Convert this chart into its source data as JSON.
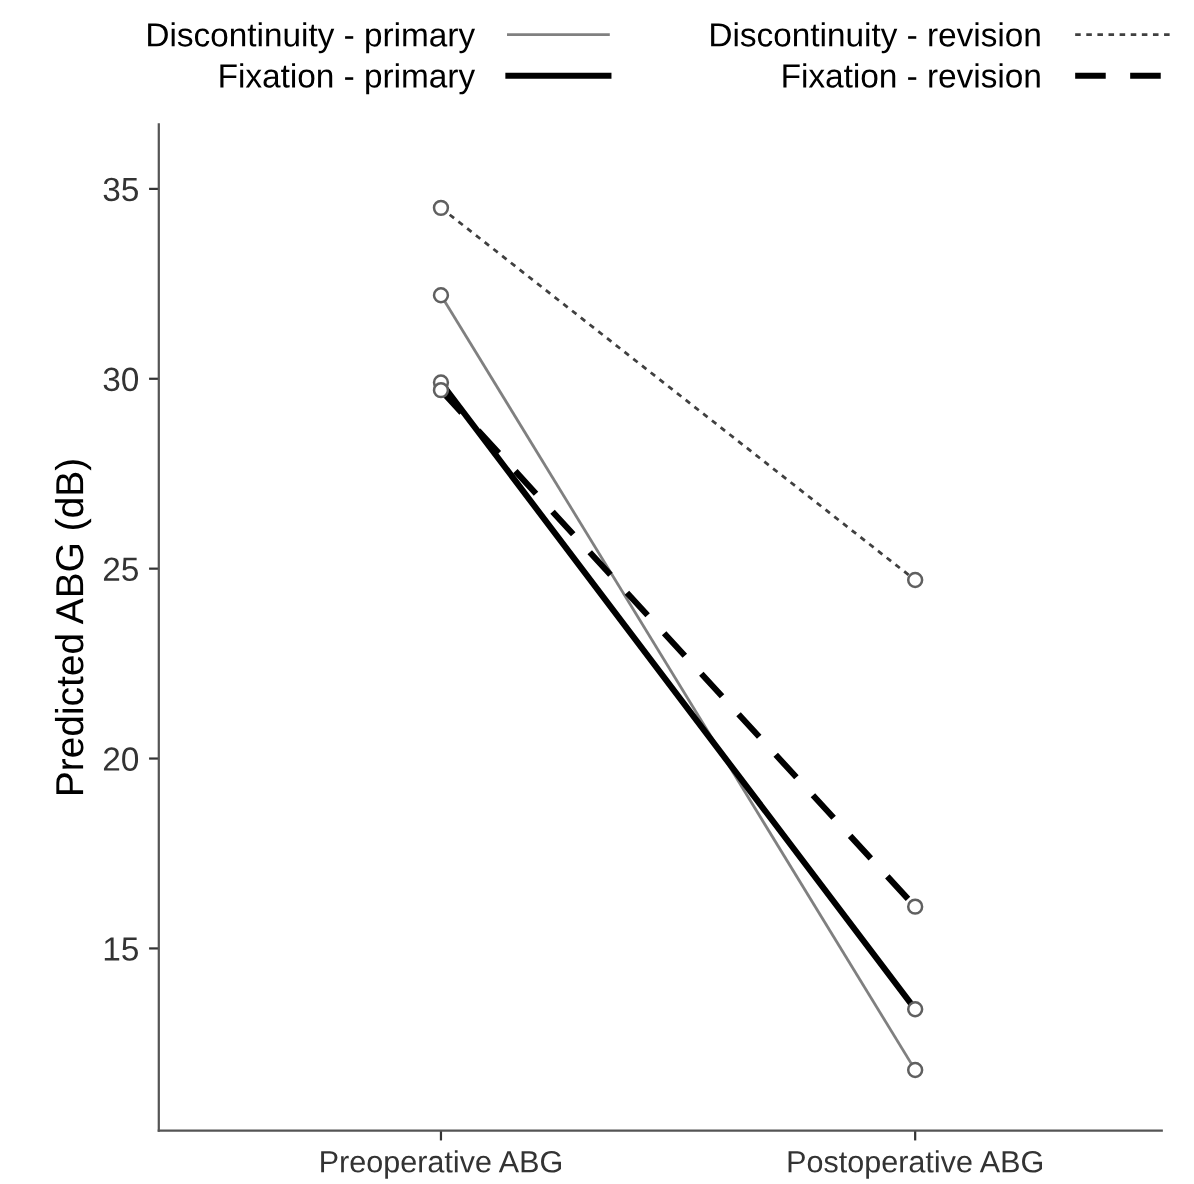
{
  "chart_data": {
    "type": "line",
    "ylabel": "Predicted ABG (dB)",
    "categories": [
      "Preoperative ABG",
      "Postoperative ABG"
    ],
    "series": [
      {
        "name": "Discontinuity - primary",
        "color": "#808080",
        "values": [
          32.2,
          11.8
        ],
        "line_style": "solid"
      },
      {
        "name": "Discontinuity - revision",
        "color": "#404040",
        "values": [
          34.5,
          24.7
        ],
        "line_style": "dotted"
      },
      {
        "name": "Fixation - primary",
        "color": "#000000",
        "values": [
          29.9,
          13.4
        ],
        "line_style": "solid"
      },
      {
        "name": "Fixation - revision",
        "color": "#000000",
        "values": [
          29.7,
          16.1
        ],
        "line_style": "dashed"
      }
    ],
    "ylim": [
      10.2,
      36.7
    ],
    "yticks": [
      15,
      20,
      25,
      30,
      35
    ],
    "grid": false,
    "legend": "top",
    "marker": "circle"
  }
}
